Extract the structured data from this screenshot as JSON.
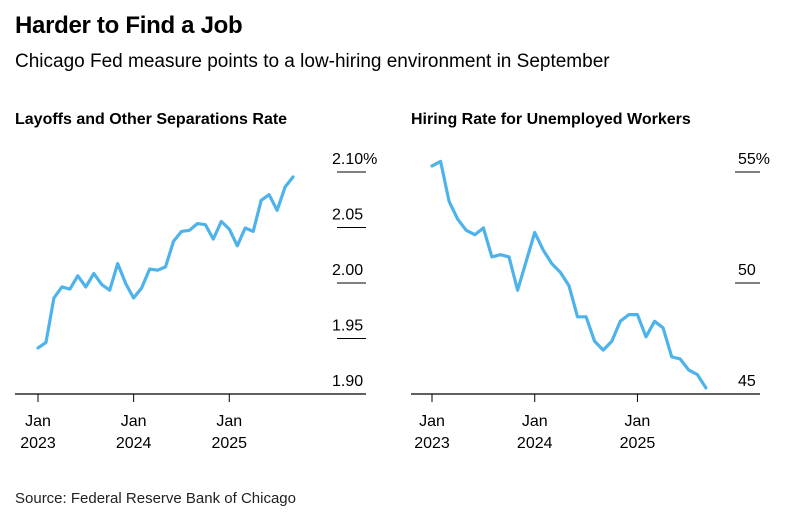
{
  "title": "Harder to Find a Job",
  "subtitle": "Chicago Fed measure points to a low-hiring environment in September",
  "source": "Source: Federal Reserve Bank of Chicago",
  "colors": {
    "line": "#4db3ea",
    "axis": "#000000",
    "text": "#000000"
  },
  "chart_data": [
    {
      "type": "line",
      "title": "Layoffs and Other Separations Rate",
      "x_ticks": [
        {
          "top": "Jan",
          "bottom": "2023",
          "t": 0
        },
        {
          "top": "Jan",
          "bottom": "2024",
          "t": 12
        },
        {
          "top": "Jan",
          "bottom": "2025",
          "t": 24
        }
      ],
      "y_ticks": [
        "2.10%",
        "2.05",
        "2.00",
        "1.95",
        "1.90"
      ],
      "y_tick_values": [
        2.1,
        2.05,
        2.0,
        1.95,
        1.9
      ],
      "ylim": [
        1.9,
        2.1
      ],
      "x_start": "Jan 2023",
      "x_end": "Sep 2025",
      "values": [
        1.928,
        1.933,
        1.973,
        1.983,
        1.981,
        1.993,
        1.983,
        1.995,
        1.985,
        1.98,
        2.004,
        1.986,
        1.973,
        1.982,
        1.999,
        1.998,
        2.001,
        2.024,
        2.033,
        2.034,
        2.04,
        2.039,
        2.026,
        2.042,
        2.035,
        2.02,
        2.036,
        2.033,
        2.061,
        2.066,
        2.052,
        2.073,
        2.082
      ]
    },
    {
      "type": "line",
      "title": "Hiring Rate for Unemployed Workers",
      "x_ticks": [
        {
          "top": "Jan",
          "bottom": "2023",
          "t": 0
        },
        {
          "top": "Jan",
          "bottom": "2024",
          "t": 12
        },
        {
          "top": "Jan",
          "bottom": "2025",
          "t": 24
        }
      ],
      "y_ticks": [
        "55%",
        "50",
        "45"
      ],
      "y_tick_values": [
        55,
        50,
        45
      ],
      "ylim": [
        45,
        55
      ],
      "x_start": "Jan 2023",
      "x_end": "Sep 2025",
      "values": [
        54.6,
        54.8,
        53.0,
        52.2,
        51.7,
        51.5,
        51.8,
        50.5,
        50.6,
        50.5,
        49.0,
        50.3,
        51.6,
        50.8,
        50.2,
        49.8,
        49.2,
        47.8,
        47.8,
        46.7,
        46.3,
        46.7,
        47.6,
        47.9,
        47.9,
        46.9,
        47.6,
        47.3,
        46.0,
        45.9,
        45.4,
        45.2,
        44.6
      ]
    }
  ]
}
